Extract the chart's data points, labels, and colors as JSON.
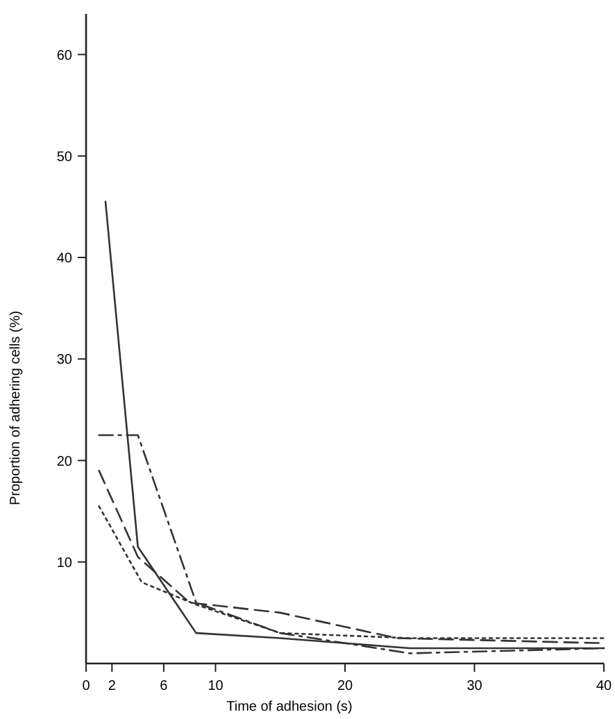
{
  "chart_data": {
    "type": "line",
    "xlabel": "Time of adhesion (s)",
    "ylabel": "Proportion of adhering cells (%)",
    "xlim": [
      0,
      40
    ],
    "xticks": [
      0,
      2,
      6,
      10,
      20,
      30,
      40
    ],
    "ylim": [
      0,
      64
    ],
    "yticks": [
      10,
      20,
      30,
      40,
      50,
      60
    ],
    "grid": false,
    "marker": "none",
    "series": [
      {
        "color": "#333333",
        "line_style": "solid",
        "x": [
          1.5,
          4,
          8.5,
          15,
          25,
          40
        ],
        "values": [
          45.5,
          11.5,
          3,
          2.5,
          1.5,
          1.5
        ]
      },
      {
        "color": "#333333",
        "line_style": "dashdot",
        "x": [
          1,
          4,
          8.5,
          15,
          25,
          40
        ],
        "values": [
          22.5,
          22.5,
          6,
          3,
          1,
          1.5
        ]
      },
      {
        "color": "#333333",
        "line_style": "dashed",
        "x": [
          1,
          4,
          8,
          15,
          24,
          40
        ],
        "values": [
          19,
          10.5,
          6,
          5,
          2.5,
          2
        ]
      },
      {
        "color": "#333333",
        "line_style": "dotted",
        "x": [
          1,
          4.3,
          8.5,
          15,
          25,
          40
        ],
        "values": [
          15.5,
          8,
          5.8,
          3,
          2.5,
          2.5
        ]
      }
    ]
  }
}
